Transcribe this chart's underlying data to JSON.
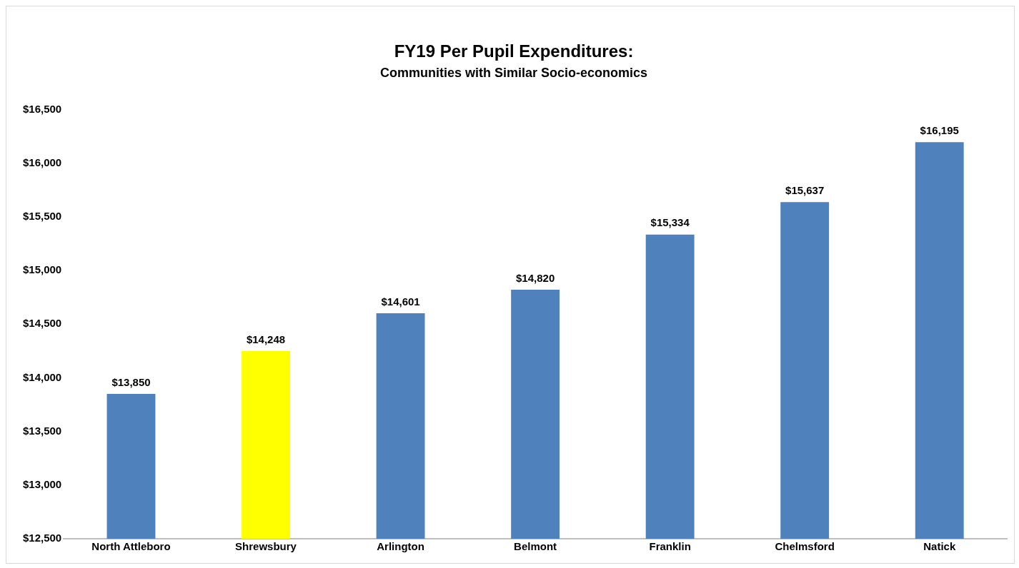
{
  "chart_data": {
    "type": "bar",
    "title": "FY19 Per Pupil Expenditures:",
    "subtitle": "Communities with Similar Socio-economics",
    "categories": [
      "North Attleboro",
      "Shrewsbury",
      "Arlington",
      "Belmont",
      "Franklin",
      "Chelmsford",
      "Natick"
    ],
    "values": [
      13850,
      14248,
      14601,
      14820,
      15334,
      15637,
      16195
    ],
    "colors": [
      "#4f81bd",
      "#ffff00",
      "#4f81bd",
      "#4f81bd",
      "#4f81bd",
      "#4f81bd",
      "#4f81bd"
    ],
    "value_labels": [
      "$13,850",
      "$14,248",
      "$14,601",
      "$14,820",
      "$15,334",
      "$15,637",
      "$16,195"
    ],
    "ylim": [
      12500,
      16500
    ],
    "yticks": [
      {
        "value": 12500,
        "label": "$12,500"
      },
      {
        "value": 13000,
        "label": "$13,000"
      },
      {
        "value": 13500,
        "label": "$13,500"
      },
      {
        "value": 14000,
        "label": "$14,000"
      },
      {
        "value": 14500,
        "label": "$14,500"
      },
      {
        "value": 15000,
        "label": "$15,000"
      },
      {
        "value": 15500,
        "label": "$15,500"
      },
      {
        "value": 16000,
        "label": "$16,000"
      },
      {
        "value": 16500,
        "label": "$16,500"
      }
    ],
    "grid": false,
    "legend": false
  }
}
